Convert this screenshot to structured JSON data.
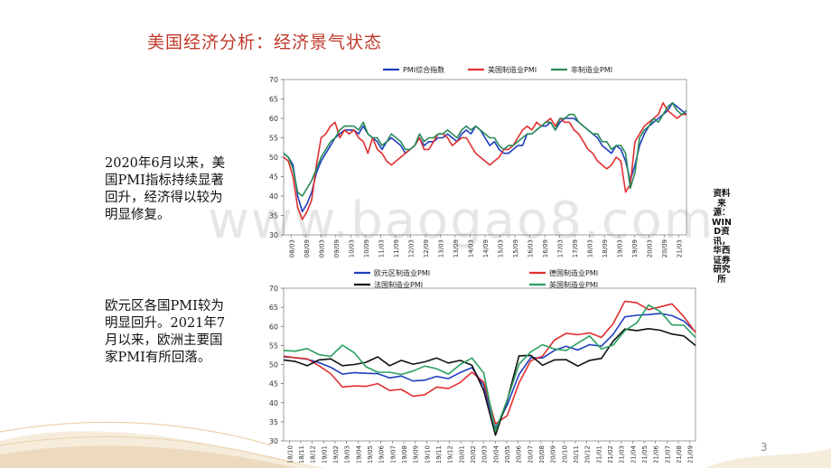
{
  "title": "美国经济分析：经济景气状态",
  "para1": "2020年6月以来，美国PMI指标持续显著回升，经济得以较为明显修复。",
  "para2": "欧元区各国PMI较为明显回升。2021年7月以来，欧洲主要国家PMI有所回落。",
  "source": "资料来源：WIND资讯，华西证券研究所",
  "watermark": "www.baogao8.com",
  "page_number": "3",
  "chart_data": [
    {
      "type": "line",
      "ylim": [
        30,
        70
      ],
      "yticks": [
        30,
        35,
        40,
        45,
        50,
        55,
        60,
        65,
        70
      ],
      "xticks": [
        "08/03",
        "08/09",
        "09/03",
        "09/09",
        "10/03",
        "10/09",
        "11/03",
        "11/09",
        "12/03",
        "12/09",
        "13/03",
        "13/09",
        "14/03",
        "14/09",
        "15/03",
        "15/09",
        "16/03",
        "16/09",
        "17/03",
        "17/09",
        "18/03",
        "18/09",
        "19/03",
        "19/09",
        "20/03",
        "20/09",
        "21/03"
      ],
      "legend_position": "top",
      "series": [
        {
          "name": "PMI综合指数",
          "color": "#1f3fbf",
          "values": [
            51,
            50,
            48,
            40,
            36,
            38,
            41,
            46,
            49,
            51,
            53,
            55,
            56,
            57,
            57,
            57,
            56,
            58,
            56,
            55,
            54,
            52,
            54,
            55,
            54,
            53,
            51,
            52,
            53,
            55,
            53,
            54,
            54,
            55,
            55,
            56,
            55,
            54,
            56,
            57,
            56,
            58,
            57,
            55,
            53,
            54,
            52,
            51,
            51,
            52,
            53,
            53,
            56,
            56,
            57,
            58,
            58,
            59,
            57,
            59,
            60,
            60,
            60,
            59,
            58,
            57,
            56,
            55,
            53,
            52,
            51,
            53,
            52,
            49,
            44,
            48,
            53,
            56,
            58,
            59,
            60,
            61,
            62,
            64,
            63,
            62,
            61
          ]
        },
        {
          "name": "美国制造业PMI",
          "color": "#e03030",
          "values": [
            50,
            49,
            45,
            37,
            34,
            36,
            39,
            48,
            55,
            56,
            58,
            59,
            55,
            57,
            56,
            57,
            55,
            54,
            51,
            55,
            52,
            51,
            49,
            48,
            49,
            50,
            51,
            52,
            53,
            55,
            52,
            52,
            54,
            56,
            56,
            55,
            53,
            54,
            55,
            55,
            53,
            51,
            50,
            49,
            48,
            49,
            50,
            52,
            52,
            53,
            55,
            57,
            58,
            57,
            59,
            58,
            59,
            60,
            58,
            60,
            59,
            59,
            57,
            56,
            54,
            52,
            51,
            49,
            48,
            47,
            48,
            50,
            49,
            41,
            43,
            54,
            56,
            58,
            59,
            60,
            61,
            64,
            62,
            61,
            60,
            61,
            61
          ]
        },
        {
          "name": "非制造业PMI",
          "color": "#2a8a5a",
          "values": [
            51,
            50,
            47,
            41,
            40,
            42,
            44,
            47,
            50,
            52,
            54,
            55,
            57,
            58,
            58,
            58,
            57,
            59,
            56,
            55,
            55,
            53,
            54,
            56,
            55,
            54,
            52,
            52,
            53,
            56,
            54,
            55,
            55,
            56,
            56,
            57,
            56,
            55,
            57,
            58,
            57,
            58,
            57,
            56,
            55,
            55,
            53,
            52,
            53,
            53,
            54,
            55,
            56,
            56,
            57,
            58,
            59,
            59,
            57,
            60,
            60,
            61,
            61,
            59,
            58,
            57,
            56,
            56,
            54,
            54,
            52,
            53,
            53,
            51,
            42,
            46,
            55,
            57,
            58,
            60,
            59,
            61,
            63,
            64,
            62,
            61,
            62
          ]
        }
      ]
    },
    {
      "type": "line",
      "ylim": [
        30,
        70
      ],
      "yticks": [
        30,
        35,
        40,
        45,
        50,
        55,
        60,
        65,
        70
      ],
      "xticks": [
        "18/10",
        "18/11",
        "18/12",
        "19/01",
        "19/02",
        "19/03",
        "19/04",
        "19/05",
        "19/06",
        "19/07",
        "19/08",
        "19/09",
        "19/10",
        "19/11",
        "19/12",
        "20/01",
        "20/02",
        "20/03",
        "20/04",
        "20/05",
        "20/06",
        "20/07",
        "20/08",
        "20/09",
        "20/10",
        "20/11",
        "20/12",
        "21/01",
        "21/02",
        "21/03",
        "21/04",
        "21/05",
        "21/06",
        "21/07",
        "21/08",
        "21/09"
      ],
      "legend_position": "top",
      "series": [
        {
          "name": "欧元区制造业PMI",
          "color": "#1f3fbf",
          "values": [
            52,
            51.8,
            51.4,
            50.5,
            49.3,
            47.5,
            47.9,
            47.7,
            47.6,
            46.5,
            47.0,
            45.7,
            45.9,
            46.9,
            46.3,
            47.9,
            49.2,
            44.5,
            33.4,
            39.4,
            47.4,
            51.8,
            51.7,
            53.7,
            54.8,
            53.8,
            55.2,
            54.8,
            57.9,
            62.5,
            62.9,
            63.1,
            63.4,
            62.8,
            61.4,
            58.6
          ]
        },
        {
          "name": "德国制造业PMI",
          "color": "#e03030",
          "values": [
            52.2,
            51.8,
            51.5,
            49.7,
            47.6,
            44.1,
            44.4,
            44.3,
            45.0,
            43.2,
            43.5,
            41.7,
            42.1,
            44.1,
            43.7,
            45.3,
            48.0,
            45.4,
            34.5,
            36.6,
            45.2,
            51.0,
            52.2,
            56.4,
            58.2,
            57.8,
            58.3,
            57.1,
            60.7,
            66.6,
            66.2,
            64.4,
            65.1,
            65.9,
            62.6,
            58.4
          ]
        },
        {
          "name": "法国制造业PMI",
          "color": "#111111",
          "values": [
            51.2,
            50.8,
            49.7,
            51.2,
            51.5,
            49.7,
            50.0,
            50.6,
            52.0,
            49.7,
            51.1,
            50.1,
            50.7,
            51.7,
            50.4,
            51.1,
            49.8,
            43.2,
            31.5,
            40.6,
            52.3,
            52.4,
            49.8,
            51.2,
            51.3,
            49.6,
            51.1,
            51.6,
            56.1,
            59.3,
            58.9,
            59.4,
            59.0,
            58.0,
            57.5,
            55.0
          ]
        },
        {
          "name": "英国制造业PMI",
          "color": "#2aa060",
          "values": [
            53.7,
            53.5,
            54.2,
            52.6,
            52.1,
            55.1,
            53.1,
            49.4,
            48.0,
            48.0,
            47.4,
            48.3,
            49.6,
            48.9,
            47.5,
            50.0,
            51.7,
            47.8,
            32.6,
            40.7,
            50.1,
            53.3,
            55.2,
            54.1,
            53.7,
            55.6,
            57.5,
            54.1,
            55.1,
            58.9,
            60.9,
            65.6,
            63.9,
            60.4,
            60.3,
            57.1
          ]
        }
      ]
    }
  ]
}
